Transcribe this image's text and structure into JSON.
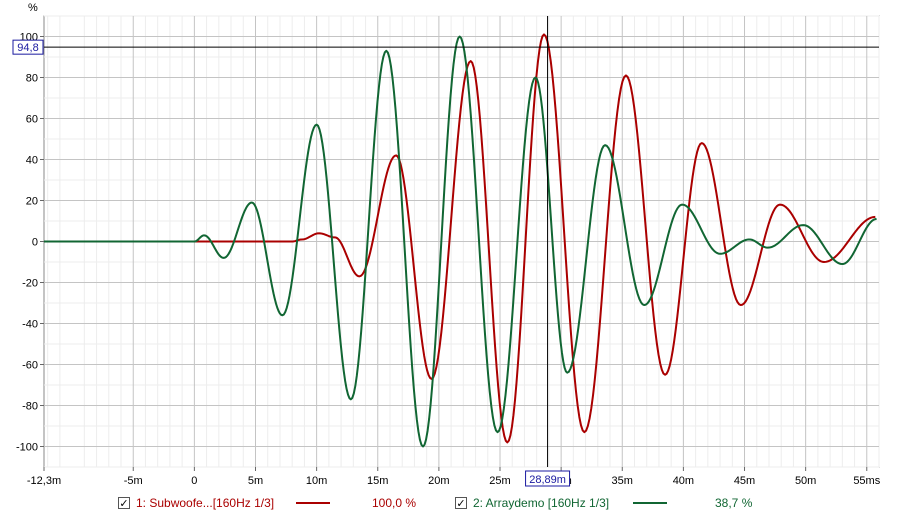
{
  "chart_data": {
    "type": "line",
    "y_unit_label": "%",
    "x_unit_suffix": "ms",
    "xlim": [
      -12.3,
      56
    ],
    "ylim": [
      -110,
      110
    ],
    "x_ticks": [
      {
        "v": -12.3,
        "label": "-12,3m"
      },
      {
        "v": -5,
        "label": "-5m"
      },
      {
        "v": 0,
        "label": "0"
      },
      {
        "v": 5,
        "label": "5m"
      },
      {
        "v": 10,
        "label": "10m"
      },
      {
        "v": 15,
        "label": "15m"
      },
      {
        "v": 20,
        "label": "20m"
      },
      {
        "v": 25,
        "label": "25m"
      },
      {
        "v": 30,
        "label": "30m"
      },
      {
        "v": 35,
        "label": "35m"
      },
      {
        "v": 40,
        "label": "40m"
      },
      {
        "v": 45,
        "label": "45m"
      },
      {
        "v": 50,
        "label": "50m"
      },
      {
        "v": 55,
        "label": "55ms"
      }
    ],
    "y_ticks": [
      -100,
      -80,
      -60,
      -40,
      -20,
      0,
      20,
      40,
      60,
      80,
      100
    ],
    "grid": true,
    "cursor": {
      "x": 28.89,
      "x_label": "28,89m",
      "y": 94.8,
      "y_label": "94,8"
    },
    "series": [
      {
        "name": "1: Subwoofe...[160Hz 1/3]",
        "color": "#aa0000",
        "percent": "100,0 %",
        "points": [
          [
            -12.3,
            0
          ],
          [
            0,
            0
          ],
          [
            2,
            0
          ],
          [
            5,
            0
          ],
          [
            8,
            0
          ],
          [
            8.8,
            1
          ],
          [
            10.2,
            4
          ],
          [
            11.5,
            2
          ],
          [
            13.5,
            -17
          ],
          [
            16.5,
            42
          ],
          [
            19.4,
            -67
          ],
          [
            22.6,
            88
          ],
          [
            25.6,
            -98
          ],
          [
            28.6,
            101
          ],
          [
            31.9,
            -93
          ],
          [
            35.3,
            81
          ],
          [
            38.5,
            -65
          ],
          [
            41.5,
            48
          ],
          [
            44.7,
            -31
          ],
          [
            47.9,
            18
          ],
          [
            51.5,
            -10
          ],
          [
            55.7,
            12
          ]
        ]
      },
      {
        "name": "2: Arraydemo [160Hz 1/3]",
        "color": "#116633",
        "percent": "38,7 %",
        "points": [
          [
            -12.3,
            0
          ],
          [
            0,
            0
          ],
          [
            0.8,
            3
          ],
          [
            2.4,
            -8
          ],
          [
            4.7,
            19
          ],
          [
            7.2,
            -36
          ],
          [
            10,
            57
          ],
          [
            12.8,
            -77
          ],
          [
            15.7,
            93
          ],
          [
            18.7,
            -100
          ],
          [
            21.7,
            100
          ],
          [
            24.8,
            -93
          ],
          [
            27.9,
            80
          ],
          [
            30.5,
            -64
          ],
          [
            33.6,
            47
          ],
          [
            36.8,
            -31
          ],
          [
            39.9,
            18
          ],
          [
            43,
            -6
          ],
          [
            45.4,
            1
          ],
          [
            46.9,
            -3
          ],
          [
            49.8,
            8
          ],
          [
            53,
            -11
          ],
          [
            55.8,
            11
          ]
        ]
      }
    ]
  },
  "legend": {
    "item1": {
      "checked": "✓",
      "label": "1: Subwoofe...[160Hz 1/3]",
      "value": "100,0 %"
    },
    "item2": {
      "checked": "✓",
      "label": "2: Arraydemo [160Hz 1/3]",
      "value": "38,7 %"
    }
  }
}
